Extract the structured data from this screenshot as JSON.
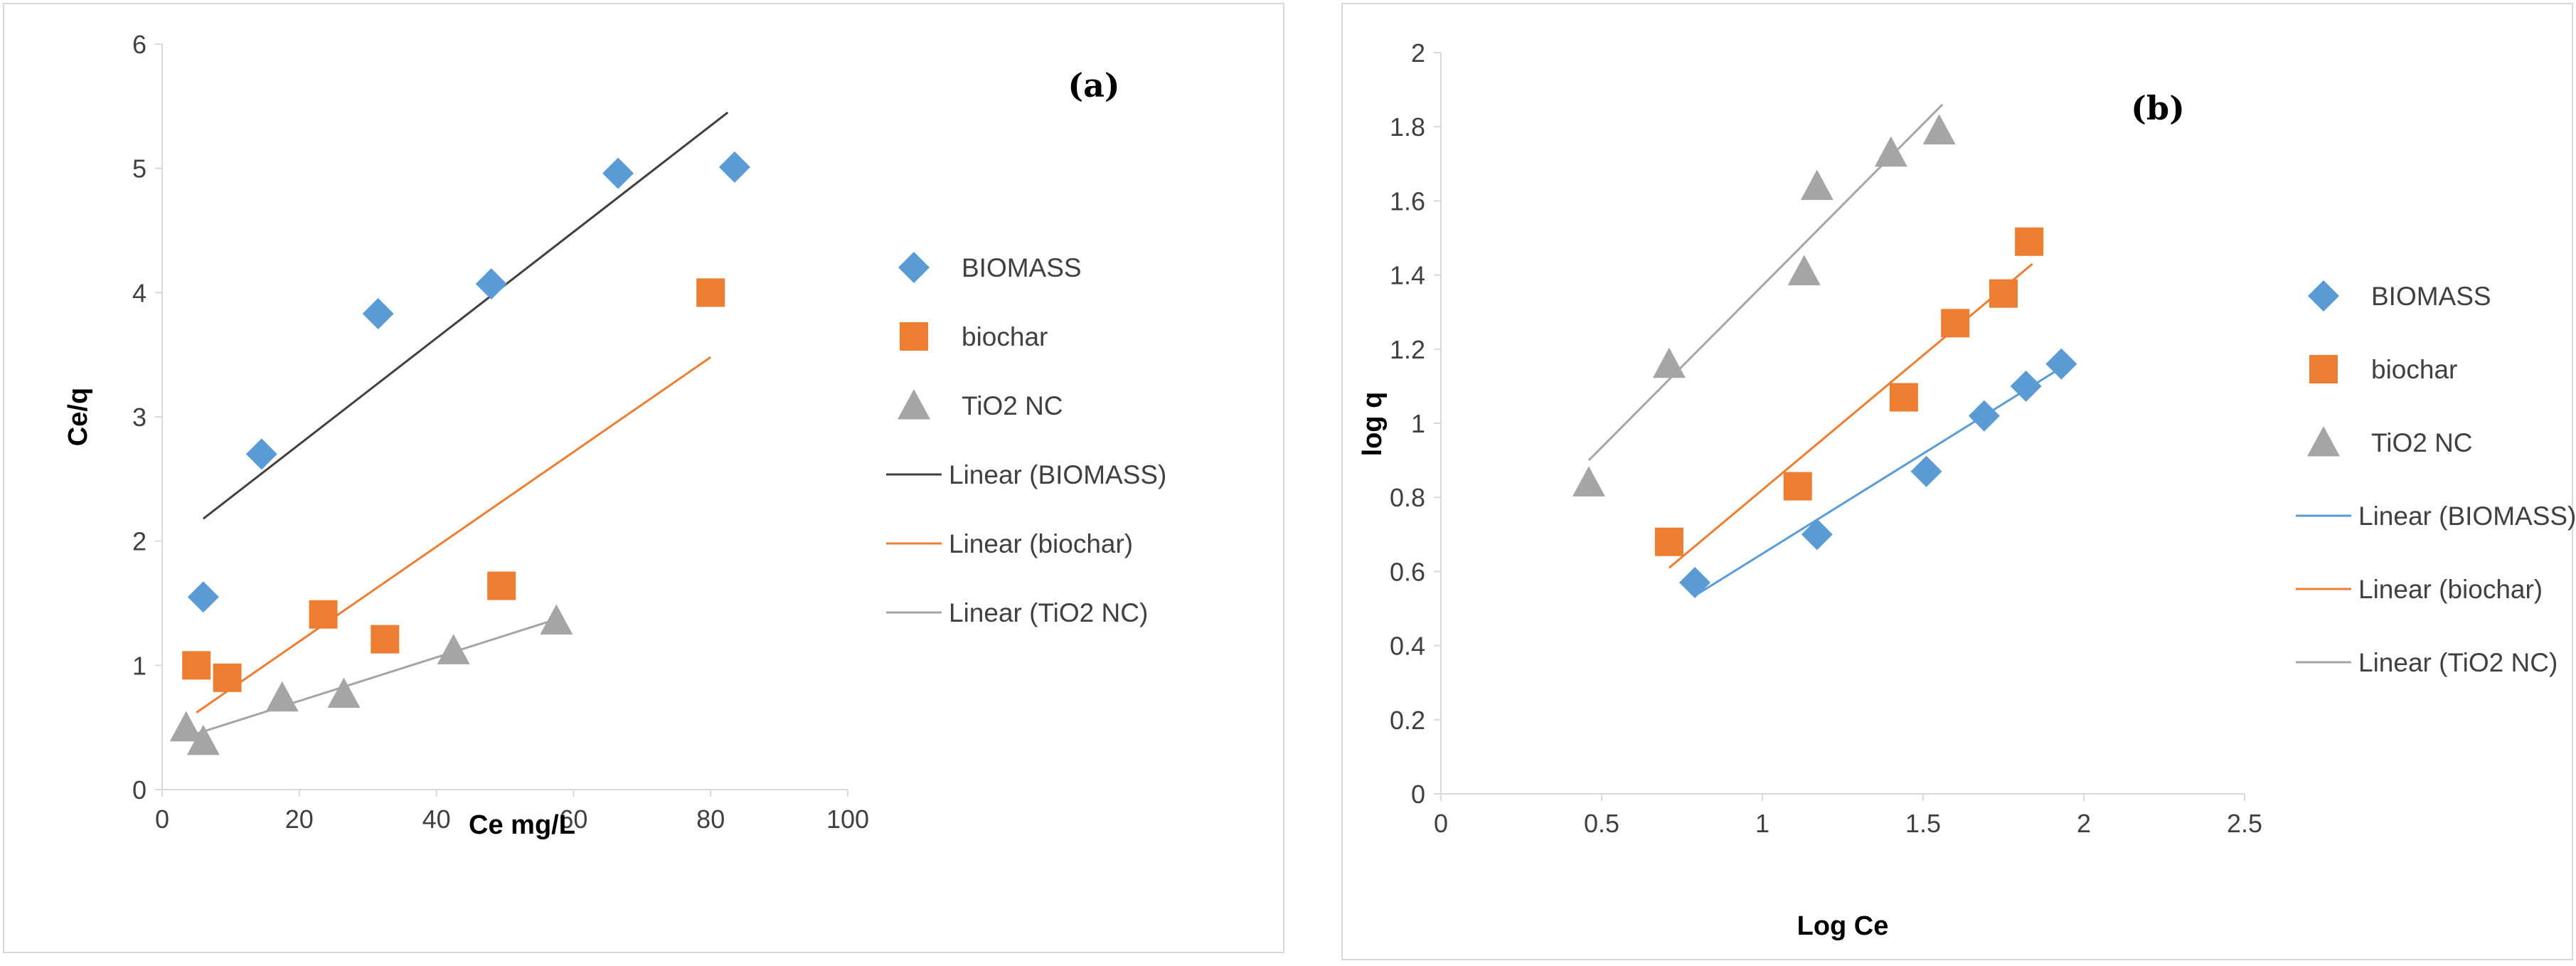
{
  "chart_data": [
    {
      "type": "scatter",
      "panel_tag": "(a)",
      "title": "",
      "xlabel": "Ce mg/L",
      "ylabel": "Ce/q",
      "xlim": [
        0,
        100
      ],
      "ylim": [
        0,
        6
      ],
      "xticks": [
        0,
        20,
        40,
        60,
        80,
        100
      ],
      "yticks": [
        0,
        1,
        2,
        3,
        4,
        5,
        6
      ],
      "grid": false,
      "legend_position": "right",
      "series": [
        {
          "name": "BIOMASS",
          "marker": "diamond",
          "color": "#5B9BD5",
          "x": [
            6,
            14.5,
            31.5,
            48,
            66.5,
            83.5
          ],
          "y": [
            1.55,
            2.7,
            3.83,
            4.07,
            4.96,
            5.01
          ]
        },
        {
          "name": "biochar",
          "marker": "square",
          "color": "#ED7D31",
          "x": [
            5,
            9.5,
            23.5,
            32.5,
            49.5,
            80
          ],
          "y": [
            1.0,
            0.9,
            1.41,
            1.21,
            1.64,
            4.0
          ]
        },
        {
          "name": "TiO2 NC",
          "marker": "triangle",
          "color": "#A5A5A5",
          "x": [
            3.5,
            6,
            17.5,
            26.5,
            42.5,
            57.5
          ],
          "y": [
            0.5,
            0.39,
            0.74,
            0.77,
            1.12,
            1.36
          ]
        }
      ],
      "trendlines": [
        {
          "name": "Linear (BIOMASS)",
          "color": "#404040",
          "x": [
            6,
            82.5
          ],
          "y": [
            2.18,
            5.45
          ]
        },
        {
          "name": "Linear (biochar)",
          "color": "#ED7D31",
          "x": [
            5,
            80
          ],
          "y": [
            0.62,
            3.48
          ]
        },
        {
          "name": "Linear (TiO2 NC)",
          "color": "#A5A5A5",
          "x": [
            5,
            58
          ],
          "y": [
            0.45,
            1.38
          ]
        }
      ]
    },
    {
      "type": "scatter",
      "panel_tag": "(b)",
      "title": "",
      "xlabel": "Log Ce",
      "ylabel": "log q",
      "xlim": [
        0,
        2.5
      ],
      "ylim": [
        0,
        2
      ],
      "xticks": [
        0,
        0.5,
        1,
        1.5,
        2,
        2.5
      ],
      "yticks": [
        0,
        0.2,
        0.4,
        0.6,
        0.8,
        1,
        1.2,
        1.4,
        1.6,
        1.8,
        2
      ],
      "grid": false,
      "legend_position": "right",
      "series": [
        {
          "name": "BIOMASS",
          "marker": "diamond",
          "color": "#5B9BD5",
          "x": [
            0.79,
            1.17,
            1.51,
            1.69,
            1.82,
            1.93
          ],
          "y": [
            0.57,
            0.7,
            0.87,
            1.02,
            1.1,
            1.16
          ]
        },
        {
          "name": "biochar",
          "marker": "square",
          "color": "#ED7D31",
          "x": [
            0.71,
            1.11,
            1.44,
            1.6,
            1.75,
            1.83
          ],
          "y": [
            0.68,
            0.83,
            1.07,
            1.27,
            1.35,
            1.49
          ]
        },
        {
          "name": "TiO2 NC",
          "marker": "triangle",
          "color": "#A5A5A5",
          "x": [
            0.46,
            0.71,
            1.13,
            1.17,
            1.4,
            1.55
          ],
          "y": [
            0.84,
            1.16,
            1.41,
            1.64,
            1.73,
            1.79
          ]
        }
      ],
      "trendlines": [
        {
          "name": "Linear (BIOMASS)",
          "color": "#5B9BD5",
          "x": [
            0.8,
            1.93
          ],
          "y": [
            0.54,
            1.15
          ]
        },
        {
          "name": "Linear (biochar)",
          "color": "#ED7D31",
          "x": [
            0.71,
            1.84
          ],
          "y": [
            0.61,
            1.43
          ]
        },
        {
          "name": "Linear (TiO2 NC)",
          "color": "#A5A5A5",
          "x": [
            0.46,
            1.56
          ],
          "y": [
            0.9,
            1.86
          ]
        }
      ]
    }
  ]
}
